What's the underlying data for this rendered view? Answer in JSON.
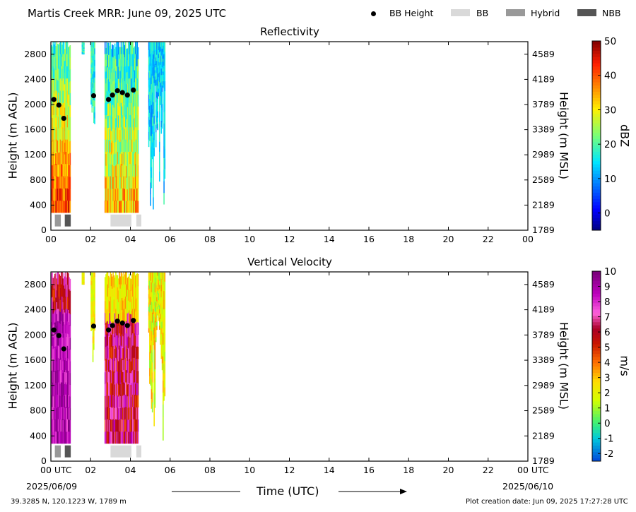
{
  "header": {
    "title": "Martis Creek MRR:  June 09, 2025 UTC"
  },
  "legend": [
    {
      "label": "BB Height",
      "marker": "dot",
      "color": "#000000"
    },
    {
      "label": "BB",
      "marker": "rect",
      "color": "#d9d9d9"
    },
    {
      "label": "Hybrid",
      "marker": "rect",
      "color": "#999999"
    },
    {
      "label": "NBB",
      "marker": "rect",
      "color": "#555555"
    }
  ],
  "footer": {
    "location": "39.3285 N, 120.1223 W, 1789 m",
    "creation": "Plot creation date: Jun 09, 2025 17:27:28 UTC",
    "xaxis_title": "Time (UTC)",
    "start_date": "2025/06/09",
    "end_date": "2025/06/10"
  },
  "chart_data": [
    {
      "type": "heatmap",
      "title": "Reflectivity",
      "ylabel": "Height (m AGL)",
      "ylabel_right": "Height (m MSL)",
      "xlim": [
        0,
        24
      ],
      "ylim": [
        0,
        3000
      ],
      "x_ticks": [
        "00",
        "02",
        "04",
        "06",
        "08",
        "10",
        "12",
        "14",
        "16",
        "18",
        "20",
        "22",
        "00"
      ],
      "y_ticks": [
        "0",
        "400",
        "800",
        "1200",
        "1600",
        "2000",
        "2400",
        "2800"
      ],
      "y_ticks_right": [
        "1789",
        "2189",
        "2589",
        "2989",
        "3389",
        "3789",
        "4189",
        "4589"
      ],
      "colorbar": {
        "label": "dBZ",
        "min": -5,
        "max": 50,
        "ticks": [
          "0",
          "10",
          "20",
          "30",
          "40",
          "50"
        ],
        "colormap": "jet"
      },
      "bb_height": [
        {
          "x": 0.15,
          "y": 2080
        },
        {
          "x": 0.4,
          "y": 1990
        },
        {
          "x": 0.65,
          "y": 1780
        },
        {
          "x": 2.15,
          "y": 2140
        },
        {
          "x": 2.9,
          "y": 2080
        },
        {
          "x": 3.1,
          "y": 2150
        },
        {
          "x": 3.35,
          "y": 2220
        },
        {
          "x": 3.6,
          "y": 2190
        },
        {
          "x": 3.85,
          "y": 2150
        },
        {
          "x": 4.15,
          "y": 2230
        }
      ],
      "bb_type": [
        {
          "start": 0.2,
          "end": 0.5,
          "type": "Hybrid"
        },
        {
          "start": 0.7,
          "end": 1.0,
          "type": "NBB"
        },
        {
          "start": 3.0,
          "end": 4.05,
          "type": "BB"
        },
        {
          "start": 4.3,
          "end": 4.55,
          "type": "BB"
        }
      ]
    },
    {
      "type": "heatmap",
      "title": "Vertical Velocity",
      "ylabel": "Height (m AGL)",
      "ylabel_right": "Height (m MSL)",
      "xlim": [
        0,
        24
      ],
      "ylim": [
        0,
        3000
      ],
      "x_ticks": [
        "00 UTC",
        "02",
        "04",
        "06",
        "08",
        "10",
        "12",
        "14",
        "16",
        "18",
        "20",
        "22",
        "00 UTC"
      ],
      "y_ticks": [
        "0",
        "400",
        "800",
        "1200",
        "1600",
        "2000",
        "2400",
        "2800"
      ],
      "y_ticks_right": [
        "1789",
        "2189",
        "2589",
        "2989",
        "3389",
        "3789",
        "4189",
        "4589"
      ],
      "colorbar": {
        "label": "m/s",
        "min": -2.5,
        "max": 10,
        "ticks": [
          "-2",
          "-1",
          "0",
          "1",
          "2",
          "3",
          "4",
          "5",
          "6",
          "7",
          "8",
          "9",
          "10"
        ],
        "colormap": "velocity"
      },
      "bb_height": [
        {
          "x": 0.15,
          "y": 2080
        },
        {
          "x": 0.4,
          "y": 1990
        },
        {
          "x": 0.65,
          "y": 1780
        },
        {
          "x": 2.15,
          "y": 2140
        },
        {
          "x": 2.9,
          "y": 2080
        },
        {
          "x": 3.1,
          "y": 2150
        },
        {
          "x": 3.35,
          "y": 2220
        },
        {
          "x": 3.6,
          "y": 2190
        },
        {
          "x": 3.85,
          "y": 2150
        },
        {
          "x": 4.15,
          "y": 2230
        }
      ],
      "bb_type": [
        {
          "start": 0.2,
          "end": 0.5,
          "type": "Hybrid"
        },
        {
          "start": 0.7,
          "end": 1.0,
          "type": "NBB"
        },
        {
          "start": 3.0,
          "end": 4.05,
          "type": "BB"
        },
        {
          "start": 4.3,
          "end": 4.55,
          "type": "BB"
        }
      ]
    }
  ]
}
